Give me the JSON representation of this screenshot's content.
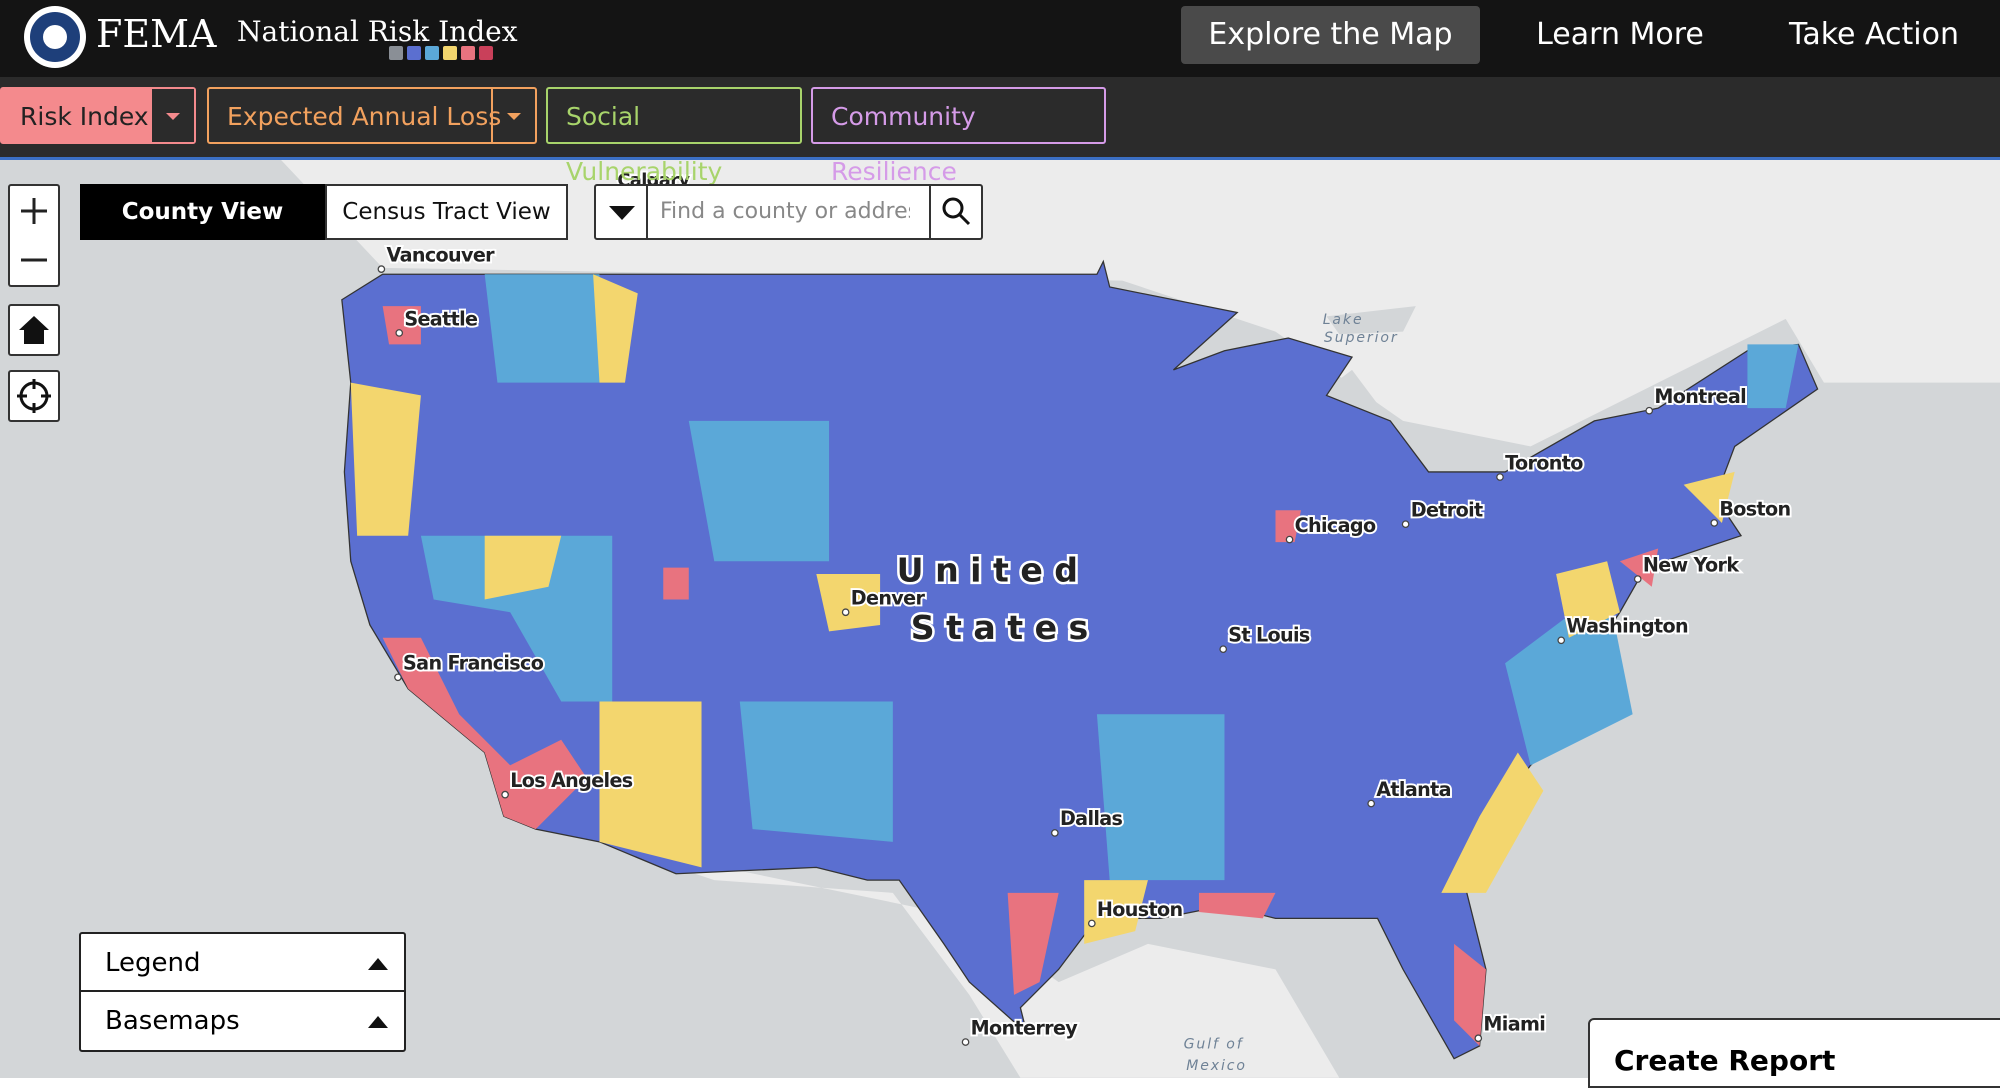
{
  "header": {
    "logo_text": "FEMA",
    "app_title": "National Risk Index",
    "nav": [
      "Explore the Map",
      "Learn More",
      "Take Action"
    ]
  },
  "tabs": [
    "Risk Index",
    "Expected Annual Loss",
    "Social Vulnerability",
    "Community Resilience"
  ],
  "view_toggle": [
    "County View",
    "Census Tract View"
  ],
  "search": {
    "placeholder": "Find a county or address"
  },
  "map_labels": [
    "Calgary",
    "Vancouver",
    "Seattle",
    "Lake",
    "Superior",
    "Montreal",
    "Toronto",
    "Detroit",
    "Chicago",
    "Boston",
    "New York",
    "Washington",
    "United",
    "States",
    "Denver",
    "St Louis",
    "San Francisco",
    "Los Angeles",
    "Dallas",
    "Atlanta",
    "Houston",
    "Monterrey",
    "Miami",
    "Gulf of",
    "Mexico"
  ],
  "panels": {
    "legend": "Legend",
    "basemaps": "Basemaps"
  },
  "create_report": "Create Report"
}
